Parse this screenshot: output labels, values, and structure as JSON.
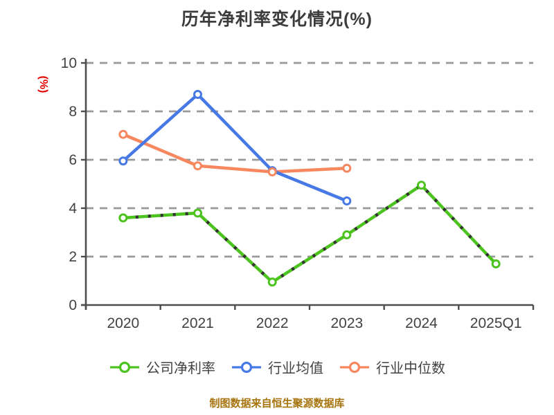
{
  "colors": {
    "background": "#ffffff",
    "grid": "#999999",
    "axis": "#4d4d4d",
    "tick_text": "#424242",
    "title_text": "#3c3c3c",
    "ylabel_text": "#e60000",
    "source_note_text": "#a6730d",
    "green_dash_overlay": "#333333",
    "marker_fill": "#ffffff"
  },
  "source_note": "制图数据来自恒生聚源数据库",
  "chart_data": {
    "type": "line",
    "title": "历年净利率变化情况(%)",
    "ylabel": "(%)",
    "xlabel": "",
    "categories": [
      "2020",
      "2021",
      "2022",
      "2023",
      "2024",
      "2025Q1"
    ],
    "series": [
      {
        "name": "公司净利率",
        "key": "company-net-margin",
        "color": "#4cc31e",
        "values": [
          3.6,
          3.8,
          0.95,
          2.9,
          4.95,
          1.7
        ]
      },
      {
        "name": "行业均值",
        "key": "industry-mean",
        "color": "#4678e6",
        "values": [
          5.95,
          8.7,
          5.55,
          4.3,
          null,
          null
        ]
      },
      {
        "name": "行业中位数",
        "key": "industry-median",
        "color": "#f7875f",
        "values": [
          7.05,
          5.75,
          5.5,
          5.65,
          null,
          null
        ]
      }
    ],
    "ylim": [
      0,
      10
    ],
    "yticks": [
      0,
      2,
      4,
      6,
      8,
      10
    ],
    "grid": "horizontal-dashed",
    "legend_position": "bottom",
    "marker_style": "open-circle"
  }
}
